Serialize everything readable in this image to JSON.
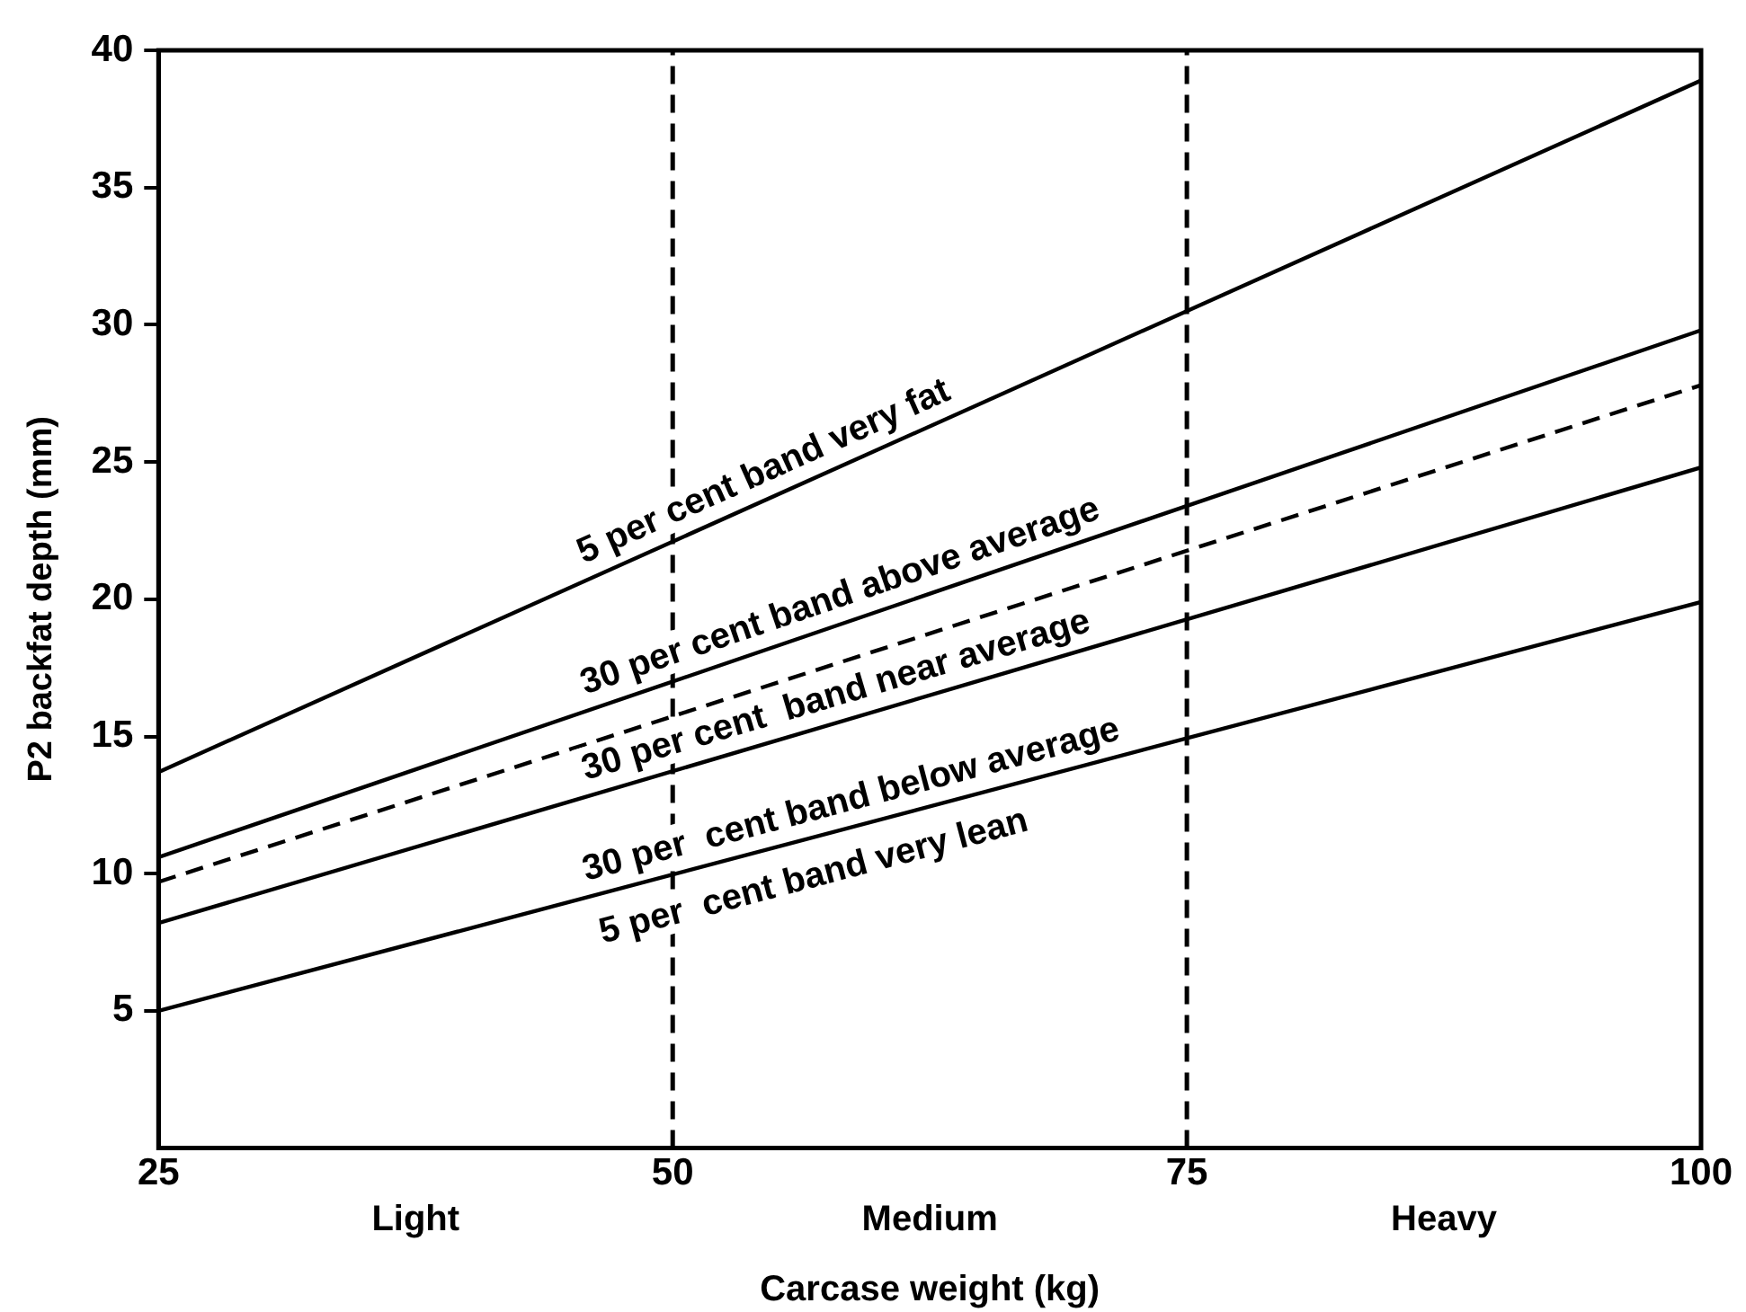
{
  "chart_data": {
    "type": "line",
    "xlabel": "Carcase weight (kg)",
    "ylabel": "P2 backfat depth (mm)",
    "x": [
      25,
      100
    ],
    "series": [
      {
        "color": "#000000",
        "values": [
          13.7,
          38.9
        ]
      },
      {
        "color": "#000000",
        "values": [
          10.6,
          29.8
        ]
      },
      {
        "color": "#000000",
        "values": [
          9.7,
          27.8
        ],
        "line_style": "dashed"
      },
      {
        "color": "#000000",
        "values": [
          8.2,
          24.8
        ]
      },
      {
        "color": "#000000",
        "values": [
          5.0,
          19.9
        ]
      }
    ],
    "xlim": [
      25,
      100
    ],
    "xticks": [
      25,
      50,
      75,
      100
    ],
    "ylim": [
      0,
      40
    ],
    "yticks": [
      5,
      10,
      15,
      20,
      25,
      30,
      35,
      40
    ],
    "ref_lines": [
      {
        "axis": "x",
        "value": 50,
        "line_style": "dashed",
        "color": "#000000"
      },
      {
        "axis": "x",
        "value": 75,
        "line_style": "dashed",
        "color": "#000000"
      }
    ],
    "annotations": [
      "5 per cent band very fat",
      "30 per cent band above average",
      "30 per cent  band near average",
      "30 per  cent band below average",
      "5 per  cent band very lean",
      "Light",
      "Medium",
      "Heavy"
    ],
    "grid": false,
    "legend": false,
    "marker": "none",
    "line_style": "solid"
  }
}
